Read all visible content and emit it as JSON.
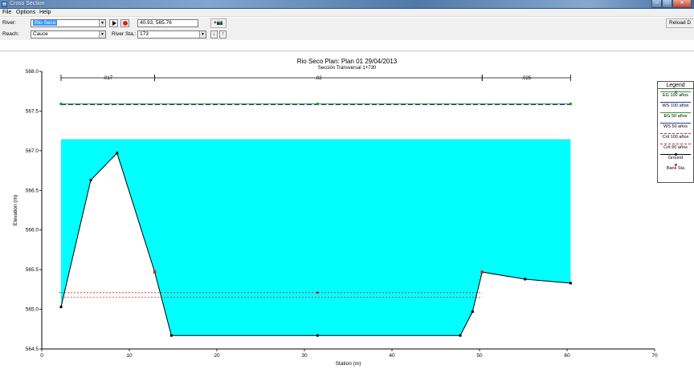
{
  "window": {
    "title": "Cross Section"
  },
  "menu": [
    "File",
    "Options",
    "Help"
  ],
  "river": {
    "label": "River:",
    "value": "Rio Seco",
    "coords": "40.93, 565.76",
    "reload_label": "Reload D"
  },
  "reach": {
    "label": "Reach:",
    "value": "Cauce",
    "station_label": "River Sta.:",
    "station_value": "173"
  },
  "colors": {
    "water": "#00ffff",
    "ground": "#000000",
    "bank": "#e02020",
    "eg": "#2a9d2a",
    "ws": "#1f3ca8"
  },
  "chart_data": {
    "type": "cross_section",
    "title": "Rio Seco     Plan: Plan 01    29/04/2013",
    "subtitle": "Sección Transversal 1+730",
    "xlabel": "Station (m)",
    "ylabel": "Elevation (m)",
    "xlim": [
      0,
      70
    ],
    "ylim": [
      564.5,
      568.0
    ],
    "x_ticks": [
      0,
      10,
      20,
      30,
      40,
      50,
      60,
      70
    ],
    "y_ticks": [
      564.5,
      565.0,
      565.5,
      566.0,
      566.5,
      567.0,
      567.5,
      568.0
    ],
    "y_tick_labels": [
      "564.5",
      "565.0",
      "565.5",
      "566.0",
      "566.5",
      "567.0",
      "567.5",
      "568.0"
    ],
    "ground": {
      "name": "Ground",
      "x": [
        2.2,
        5.6,
        8.6,
        12.9,
        14.8,
        31.5,
        47.8,
        49.2,
        50.3,
        55.2,
        60.4
      ],
      "y": [
        565.03,
        566.63,
        566.97,
        565.47,
        564.67,
        564.67,
        564.67,
        564.97,
        565.47,
        565.38,
        565.33
      ]
    },
    "bank_stations": {
      "name": "Bank Sta",
      "x": [
        12.9,
        50.3
      ],
      "y": [
        565.47,
        565.47
      ]
    },
    "water_surface": {
      "x": [
        2.2,
        60.4
      ],
      "y": 567.14
    },
    "eg_100": {
      "name": "EG 100 años",
      "y": 567.59,
      "markers_x": [
        2.2,
        31.5,
        60.4
      ]
    },
    "ws_100": {
      "name": "WS 100 años",
      "y": 567.58
    },
    "crit_lines": [
      {
        "name": "Crit 100 años",
        "y": 565.21,
        "x": [
          2.2,
          50.3
        ]
      },
      {
        "name": "Crit 50 años",
        "y": 565.15,
        "x": [
          2.2,
          50.3
        ]
      }
    ],
    "mannings": [
      {
        "label": ".017",
        "x_from": 2.2,
        "x_to": 12.9
      },
      {
        "label": ".02",
        "x_from": 12.9,
        "x_to": 50.3
      },
      {
        "label": ".025",
        "x_from": 50.3,
        "x_to": 60.4
      }
    ],
    "legend": {
      "title": "Legend",
      "position": "right",
      "entries": [
        {
          "name": "EG 100 años",
          "color": "#2a9d2a",
          "style": "solid",
          "marker": true
        },
        {
          "name": "WS 100 años",
          "color": "#1f3ca8",
          "style": "solid",
          "marker": false
        },
        {
          "name": "EG 50 años",
          "color": "#2a9d2a",
          "style": "solid",
          "marker": false
        },
        {
          "name": "WS 50 años",
          "color": "#1f3ca8",
          "style": "solid",
          "marker": false
        },
        {
          "name": "Crit 100 años",
          "color": "#e02020",
          "style": "dashed",
          "marker": false
        },
        {
          "name": "Crit 50 años",
          "color": "#e02020",
          "style": "dashed",
          "marker": false
        },
        {
          "name": "Ground",
          "color": "#000000",
          "style": "solid",
          "marker": true
        },
        {
          "name": "Bank Sta",
          "color": "#e02020",
          "style": "none",
          "marker": true
        }
      ]
    }
  }
}
